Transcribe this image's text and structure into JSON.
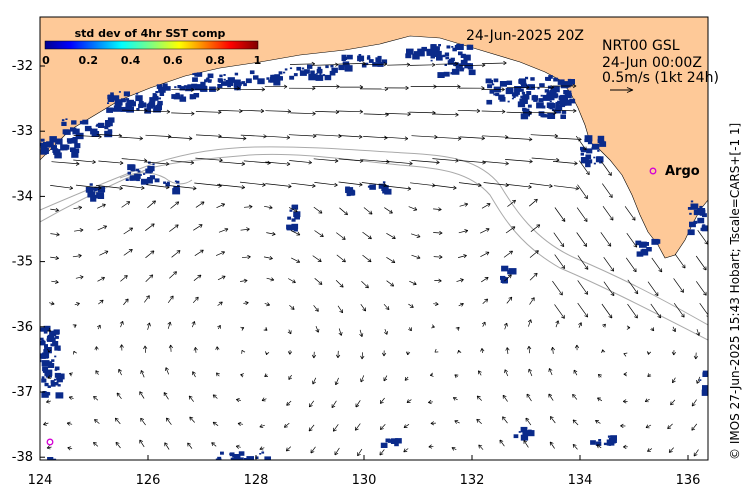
{
  "map": {
    "date_label": "24-Jun-2025 20Z",
    "product_label": "NRT00 GSL",
    "time_label": "24-Jun 00:00Z",
    "scale_label": "0.5m/s (1kt 24h)",
    "argo_label": "Argo",
    "credit": "© IMOS 27-Jun-2025 15:43 Hobart; Tscale=CARS+[-1 1]",
    "colorbar": {
      "title": "std dev of 4hr SST comp",
      "ticks": [
        "0",
        "0.2",
        "0.4",
        "0.6",
        "0.8",
        "1"
      ]
    },
    "x_ticks": [
      "124",
      "126",
      "128",
      "130",
      "132",
      "134",
      "136"
    ],
    "y_ticks": [
      "-32",
      "-33",
      "-34",
      "-35",
      "-36",
      "-37",
      "-38"
    ],
    "colors": {
      "land": "#fec998",
      "cloud": "#0a2a8a",
      "arrow": "#000000",
      "argo": "#d400d4",
      "bathymetry": "#aaaaaa"
    }
  }
}
